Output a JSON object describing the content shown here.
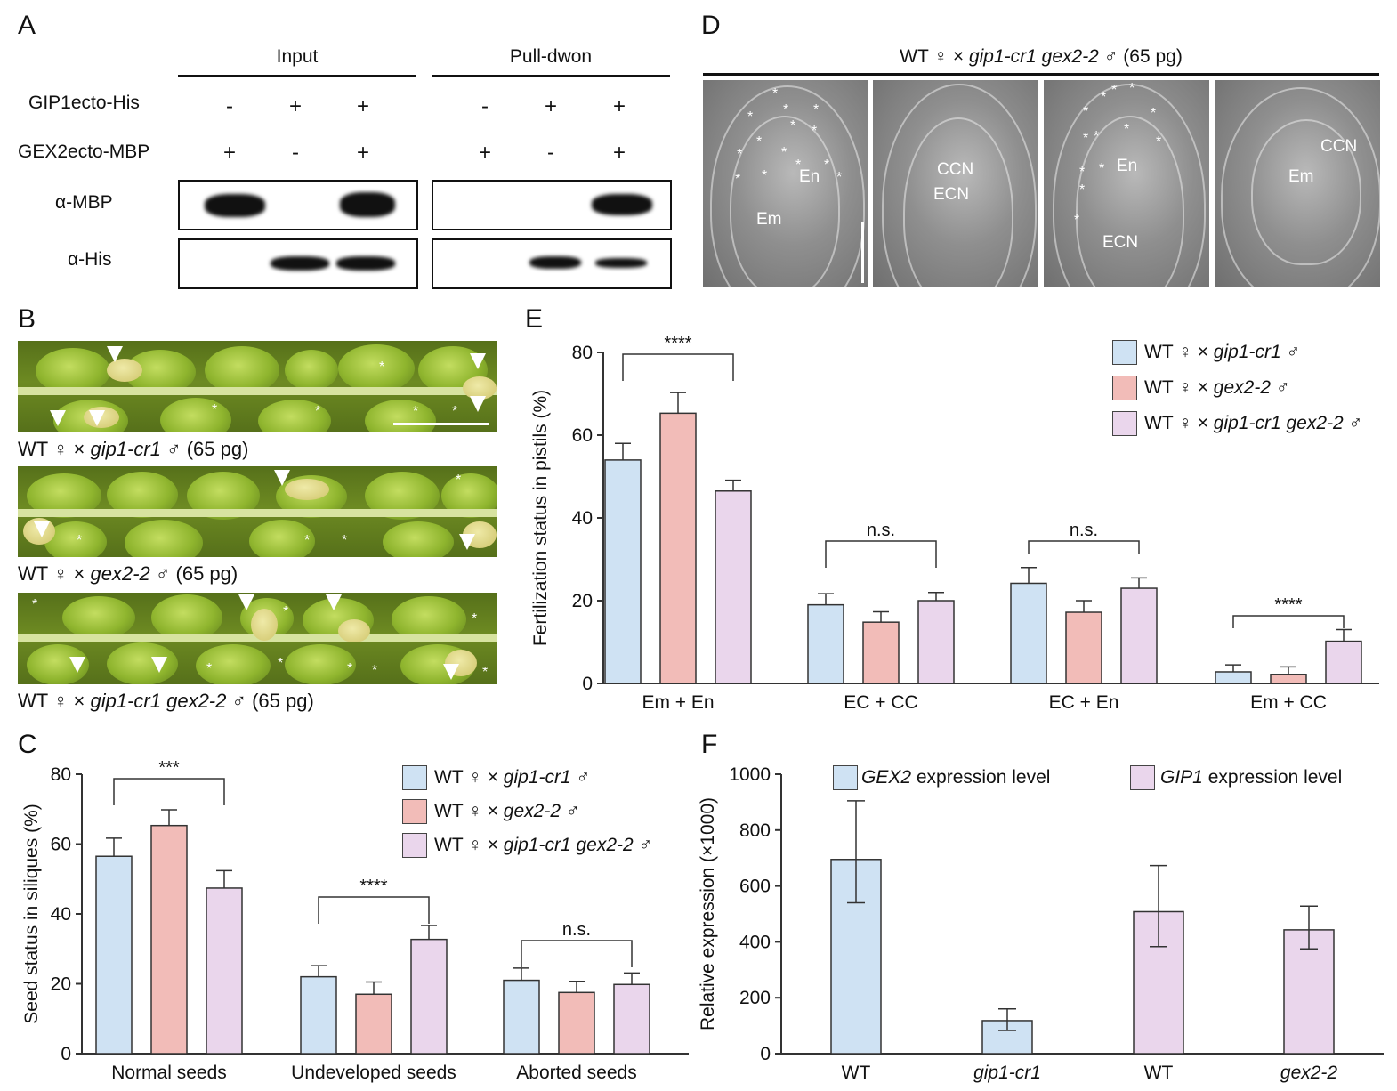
{
  "panel_labels": {
    "a": "A",
    "b": "B",
    "c": "C",
    "d": "D",
    "e": "E",
    "f": "F"
  },
  "panelA": {
    "input_header": "Input",
    "pulldown_header": "Pull-dwon",
    "row_labels": [
      "GIP1ecto-His",
      "GEX2ecto-MBP"
    ],
    "gip1_signs": [
      "-",
      "+",
      "+",
      "-",
      "+",
      "+"
    ],
    "gex2_signs": [
      "+",
      "-",
      "+",
      "+",
      "-",
      "+"
    ],
    "blot_labels": [
      "α-MBP",
      "α-His"
    ]
  },
  "panelB": {
    "captions": [
      {
        "prefix": "WT ♀ × ",
        "genotype": "gip1-cr1",
        "suffix": " ♂ (65 pg)"
      },
      {
        "prefix": "WT ♀ × ",
        "genotype": "gex2-2",
        "suffix": " ♂ (65 pg)"
      },
      {
        "prefix": "WT ♀ × ",
        "genotype": "gip1-cr1 gex2-2",
        "suffix": " ♂ (65 pg)"
      }
    ]
  },
  "panelD": {
    "title_prefix": "WT ♀ × ",
    "title_genotype": "gip1-cr1 gex2-2",
    "title_suffix": " ♂ (65 pg)",
    "labels": [
      "En",
      "Em",
      "CCN",
      "ECN",
      "En",
      "ECN",
      "CCN",
      "Em"
    ]
  },
  "colors": {
    "blue": "#cfe2f3",
    "red": "#f2bcb8",
    "purple": "#ead6ec",
    "axis": "#333333"
  },
  "legend_CE": [
    {
      "prefix": "WT ♀ × ",
      "genotype": "gip1-cr1",
      "suffix": " ♂",
      "color": "#cfe2f3"
    },
    {
      "prefix": "WT ♀ × ",
      "genotype": "gex2-2",
      "suffix": " ♂",
      "color": "#f2bcb8"
    },
    {
      "prefix": "WT ♀ × ",
      "genotype": "gip1-cr1 gex2-2",
      "suffix": " ♂",
      "color": "#ead6ec"
    }
  ],
  "chart_data": [
    {
      "id": "C",
      "type": "bar",
      "ylabel": "Seed status in siliques (%)",
      "ylim": [
        0,
        80
      ],
      "yticks": [
        0,
        20,
        40,
        60,
        80
      ],
      "categories": [
        "Normal seeds",
        "Undeveloped seeds",
        "Aborted seeds"
      ],
      "series": [
        {
          "name": "WT ♀ × gip1-cr1 ♂",
          "values": [
            56.5,
            22,
            21
          ],
          "errors": [
            5.2,
            3.2,
            3.5
          ]
        },
        {
          "name": "WT ♀ × gex2-2 ♂",
          "values": [
            65.3,
            17,
            17.5
          ],
          "errors": [
            4.5,
            3.5,
            3.2
          ]
        },
        {
          "name": "WT ♀ × gip1-cr1 gex2-2 ♂",
          "values": [
            47.4,
            32.7,
            19.8
          ],
          "errors": [
            5,
            4,
            3.3
          ]
        }
      ],
      "significance": [
        "***",
        "****",
        "n.s."
      ],
      "legend": "top-right"
    },
    {
      "id": "E",
      "type": "bar",
      "ylabel": "Fertilization status in pistils (%)",
      "ylim": [
        0,
        80
      ],
      "yticks": [
        0,
        20,
        40,
        60,
        80
      ],
      "categories": [
        "Em + En",
        "EC + CC",
        "EC + En",
        "Em + CC"
      ],
      "series": [
        {
          "name": "WT ♀ × gip1-cr1 ♂",
          "values": [
            54,
            19,
            24.2,
            2.8
          ],
          "errors": [
            4,
            2.7,
            3.8,
            1.7
          ]
        },
        {
          "name": "WT ♀ × gex2-2 ♂",
          "values": [
            65.3,
            14.8,
            17.2,
            2.2
          ],
          "errors": [
            5,
            2.5,
            2.8,
            1.8
          ]
        },
        {
          "name": "WT ♀ × gip1-cr1 gex2-2 ♂",
          "values": [
            46.5,
            20,
            23,
            10.2
          ],
          "errors": [
            2.6,
            2,
            2.5,
            2.8
          ]
        }
      ],
      "significance": [
        "****",
        "n.s.",
        "n.s.",
        "****"
      ],
      "legend": "top-right"
    },
    {
      "id": "F",
      "type": "bar",
      "ylabel": "Relative expression (×1000)",
      "ylim": [
        0,
        1000
      ],
      "yticks": [
        0,
        200,
        400,
        600,
        800,
        1000
      ],
      "categories": [
        "WT",
        "gip1-cr1",
        "WT",
        "gex2-2"
      ],
      "values": [
        695,
        118,
        508,
        443
      ],
      "errors_low": [
        155,
        35,
        125,
        68
      ],
      "errors_high": [
        210,
        42,
        165,
        85
      ],
      "bar_colors": [
        "#cfe2f3",
        "#cfe2f3",
        "#ead6ec",
        "#ead6ec"
      ],
      "legend_entries": [
        {
          "genotype": "GEX2",
          "suffix": " expression level",
          "color": "#cfe2f3"
        },
        {
          "genotype": "GIP1",
          "suffix": " expression level",
          "color": "#ead6ec"
        }
      ],
      "legend": "top"
    }
  ]
}
